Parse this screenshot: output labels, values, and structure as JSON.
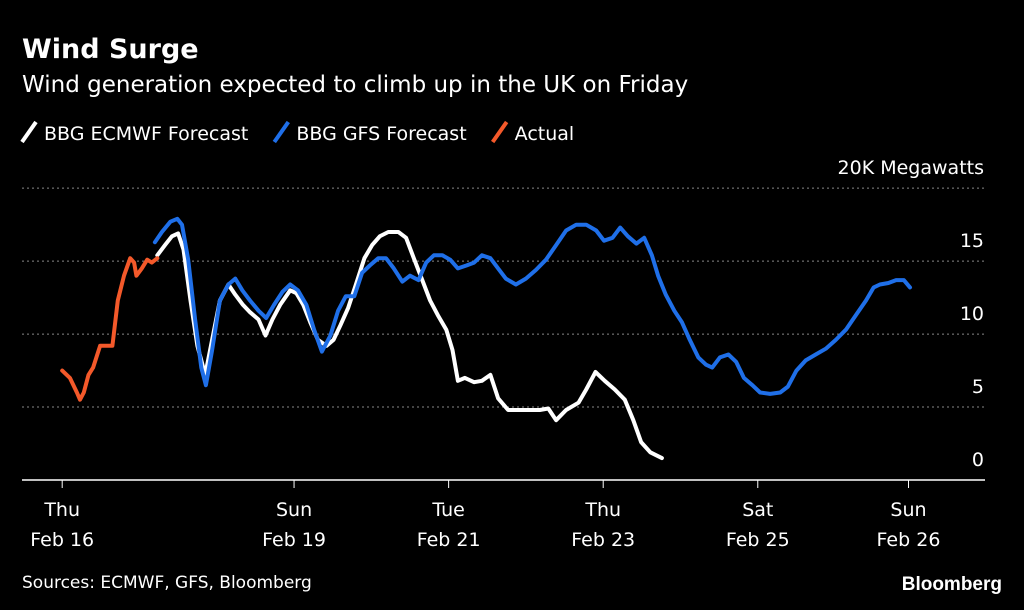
{
  "chart_data": {
    "type": "line",
    "title": "Wind Surge",
    "subtitle": "Wind generation expected to climb up in the UK on Friday",
    "source": "Sources: ECMWF, GFS, Bloomberg",
    "brand": "Bloomberg",
    "grid": true,
    "legend": "top-left",
    "xlim": [
      -0.52,
      11.94
    ],
    "xticks": [
      {
        "value": 0,
        "label": [
          "Thu",
          "Feb 16"
        ]
      },
      {
        "value": 3,
        "label": [
          "Sun",
          "Feb 19"
        ]
      },
      {
        "value": 5,
        "label": [
          "Tue",
          "Feb 21"
        ]
      },
      {
        "value": 7,
        "label": [
          "Thu",
          "Feb 23"
        ]
      },
      {
        "value": 9,
        "label": [
          "Sat",
          "Feb 25"
        ]
      },
      {
        "value": 10.95,
        "label": [
          "Sun",
          "Feb 26"
        ]
      }
    ],
    "ylim": [
      0,
      20.3
    ],
    "yticks": [
      0,
      5,
      10,
      15,
      {
        "value": 20,
        "label": "20K Megawatts"
      }
    ],
    "series": [
      {
        "name": "BBG ECMWF Forecast",
        "color": "#ffffff",
        "x": [
          1.23,
          1.33,
          1.42,
          1.5,
          1.57,
          1.66,
          1.75,
          1.85,
          1.94,
          2.04,
          2.15,
          2.24,
          2.34,
          2.43,
          2.54,
          2.63,
          2.72,
          2.82,
          2.95,
          3.03,
          3.12,
          3.21,
          3.31,
          3.42,
          3.51,
          3.6,
          3.7,
          3.8,
          3.91,
          4.01,
          4.11,
          4.22,
          4.35,
          4.45,
          4.55,
          4.66,
          4.76,
          4.86,
          4.97,
          5.05,
          5.12,
          5.21,
          5.33,
          5.43,
          5.54,
          5.64,
          5.77,
          5.93,
          6.05,
          6.18,
          6.29,
          6.39,
          6.52,
          6.68,
          6.78,
          6.9,
          7.02,
          7.15,
          7.28,
          7.39,
          7.49,
          7.61,
          7.76
        ],
        "values": [
          15.4,
          16.1,
          16.7,
          16.9,
          15.8,
          12.3,
          9.2,
          7.2,
          9.6,
          12.3,
          13.4,
          12.7,
          12.0,
          11.5,
          11.0,
          9.9,
          11.0,
          12.0,
          13.0,
          12.8,
          12.0,
          10.8,
          9.6,
          9.2,
          9.6,
          10.6,
          11.8,
          13.4,
          15.2,
          16.1,
          16.7,
          17.0,
          17.0,
          16.6,
          15.2,
          13.7,
          12.3,
          11.3,
          10.3,
          8.9,
          6.8,
          7.0,
          6.7,
          6.8,
          7.2,
          5.6,
          4.8,
          4.8,
          4.8,
          4.8,
          4.9,
          4.1,
          4.8,
          5.3,
          6.2,
          7.4,
          6.8,
          6.2,
          5.5,
          4.1,
          2.6,
          1.9,
          1.5
        ]
      },
      {
        "name": "BBG GFS Forecast",
        "color": "#1f6fe8",
        "x": [
          1.2,
          1.29,
          1.4,
          1.49,
          1.55,
          1.63,
          1.72,
          1.8,
          1.86,
          1.94,
          2.04,
          2.15,
          2.24,
          2.33,
          2.43,
          2.54,
          2.64,
          2.74,
          2.85,
          2.95,
          3.05,
          3.16,
          3.26,
          3.36,
          3.47,
          3.57,
          3.67,
          3.78,
          3.88,
          3.98,
          4.09,
          4.19,
          4.29,
          4.4,
          4.5,
          4.61,
          4.71,
          4.81,
          4.92,
          5.02,
          5.12,
          5.23,
          5.33,
          5.43,
          5.54,
          5.64,
          5.74,
          5.87,
          6.0,
          6.13,
          6.26,
          6.39,
          6.52,
          6.65,
          6.78,
          6.91,
          7.01,
          7.12,
          7.22,
          7.32,
          7.43,
          7.53,
          7.63,
          7.71,
          7.81,
          7.92,
          8.02,
          8.12,
          8.23,
          8.33,
          8.41,
          8.51,
          8.62,
          8.72,
          8.82,
          8.93,
          9.03,
          9.16,
          9.29,
          9.39,
          9.5,
          9.62,
          9.75,
          9.88,
          10.01,
          10.14,
          10.27,
          10.4,
          10.5,
          10.58,
          10.69,
          10.79,
          10.89,
          10.97
        ],
        "values": [
          16.3,
          17.0,
          17.7,
          17.9,
          17.5,
          15.1,
          11.0,
          7.7,
          6.5,
          8.9,
          12.3,
          13.4,
          13.8,
          13.0,
          12.3,
          11.6,
          11.1,
          12.0,
          12.9,
          13.4,
          13.0,
          12.0,
          10.3,
          8.8,
          9.9,
          11.6,
          12.6,
          12.6,
          14.2,
          14.7,
          15.2,
          15.2,
          14.5,
          13.6,
          14.0,
          13.7,
          14.9,
          15.4,
          15.4,
          15.1,
          14.5,
          14.7,
          14.9,
          15.4,
          15.2,
          14.5,
          13.8,
          13.4,
          13.8,
          14.4,
          15.1,
          16.1,
          17.1,
          17.5,
          17.5,
          17.1,
          16.4,
          16.6,
          17.3,
          16.7,
          16.2,
          16.6,
          15.4,
          14.0,
          12.7,
          11.6,
          10.8,
          9.6,
          8.4,
          7.9,
          7.7,
          8.4,
          8.6,
          8.1,
          7.0,
          6.5,
          6.0,
          5.9,
          6.0,
          6.4,
          7.5,
          8.2,
          8.6,
          9.0,
          9.6,
          10.3,
          11.3,
          12.3,
          13.2,
          13.4,
          13.5,
          13.7,
          13.7,
          13.2
        ]
      },
      {
        "name": "Actual",
        "color": "#f4592a",
        "x": [
          0.0,
          0.1,
          0.19,
          0.23,
          0.28,
          0.34,
          0.4,
          0.49,
          0.58,
          0.65,
          0.72,
          0.8,
          0.88,
          0.93,
          0.96,
          1.03,
          1.1,
          1.16,
          1.23
        ],
        "values": [
          7.5,
          7.0,
          6.0,
          5.5,
          6.0,
          7.2,
          7.7,
          9.2,
          9.2,
          9.2,
          12.3,
          14.0,
          15.2,
          14.9,
          14.0,
          14.5,
          15.1,
          14.9,
          15.2
        ]
      }
    ]
  }
}
